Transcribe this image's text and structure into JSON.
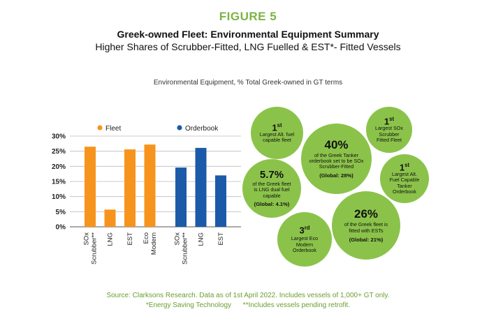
{
  "figure_label": "FIGURE 5",
  "title": "Greek-owned Fleet: Environmental Equipment Summary",
  "subtitle": "Higher Shares of Scrubber-Fitted, LNG Fuelled & EST*- Fitted Vessels",
  "chart_caption": "Environmental Equipment, % Total Greek-owned in GT terms",
  "colors": {
    "fleet": "#f7941d",
    "orderbook": "#1b5aa8",
    "bubble": "#8bc34a",
    "accent": "#7cb342"
  },
  "chart_data": {
    "type": "bar",
    "ylim": [
      0,
      30
    ],
    "yticks": [
      "0%",
      "5%",
      "10%",
      "15%",
      "20%",
      "25%",
      "30%"
    ],
    "grid": true,
    "legend_position": "top",
    "series": [
      {
        "name": "Fleet",
        "categories": [
          [
            "SOx",
            "Scrubber**"
          ],
          [
            "LNG"
          ],
          [
            "EST"
          ],
          [
            "Eco",
            "Modern"
          ]
        ],
        "values": [
          26.5,
          5.7,
          25.6,
          27.2
        ]
      },
      {
        "name": "Orderbook",
        "categories": [
          [
            "SOx",
            "Scrubber**"
          ],
          [
            "LNG"
          ],
          [
            "EST"
          ]
        ],
        "values": [
          19.6,
          26.1,
          17.0
        ]
      }
    ]
  },
  "bubbles": [
    {
      "big": "1",
      "sup": "st",
      "text": "Largest Alt. fuel capable fleet",
      "global": ""
    },
    {
      "big": "40%",
      "sup": "",
      "text": "of the Greek Tanker orderbook set to be SOx Scrubber-Fitted",
      "global": "(Global: 28%)"
    },
    {
      "big": "1",
      "sup": "st",
      "text": "Largest SOx Scrubber Fitted Fleet",
      "global": ""
    },
    {
      "big": "5.7%",
      "sup": "",
      "text": "of the Greek fleet is LNG dual fuel capable",
      "global": "(Global: 4.1%)"
    },
    {
      "big": "1",
      "sup": "st",
      "text": "Largest Alt. Fuel Capable Tanker Orderbook",
      "global": ""
    },
    {
      "big": "26%",
      "sup": "",
      "text": "of the Greek fleet is fitted with ESTs",
      "global": "(Global: 21%)"
    },
    {
      "big": "3",
      "sup": "rd",
      "text": "Largest Eco Modern Orderbook",
      "global": ""
    }
  ],
  "source_line1": "Source: Clarksons Research. Data as of 1st April 2022. Includes vessels of 1,000+ GT only.",
  "source_line2": "*Energy Saving Technology      **Includes vessels pending retrofit."
}
